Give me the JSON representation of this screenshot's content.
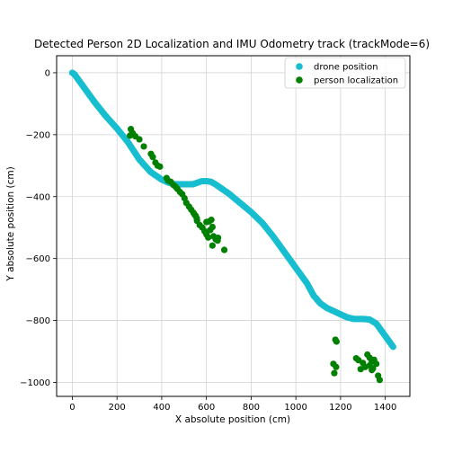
{
  "chart_data": {
    "type": "scatter",
    "title": "Detected Person 2D Localization and IMU Odometry track (trackMode=6)",
    "xlabel": "X absolute position (cm)",
    "ylabel": "Y absolute position (cm)",
    "xlim": [
      -70,
      1510
    ],
    "ylim": [
      -1045,
      55
    ],
    "xticks": [
      0,
      200,
      400,
      600,
      800,
      1000,
      1200,
      1400
    ],
    "yticks": [
      0,
      -200,
      -400,
      -600,
      -800,
      -1000
    ],
    "grid": true,
    "legend_position": "top-right",
    "series": [
      {
        "name": "drone position",
        "color": "#17becf",
        "path": [
          [
            0,
            0
          ],
          [
            10,
            -5
          ],
          [
            30,
            -25
          ],
          [
            60,
            -55
          ],
          [
            100,
            -95
          ],
          [
            150,
            -140
          ],
          [
            200,
            -180
          ],
          [
            250,
            -225
          ],
          [
            300,
            -280
          ],
          [
            350,
            -320
          ],
          [
            400,
            -345
          ],
          [
            430,
            -355
          ],
          [
            460,
            -360
          ],
          [
            500,
            -360
          ],
          [
            540,
            -360
          ],
          [
            560,
            -355
          ],
          [
            580,
            -350
          ],
          [
            600,
            -350
          ],
          [
            620,
            -352
          ],
          [
            640,
            -360
          ],
          [
            670,
            -375
          ],
          [
            700,
            -390
          ],
          [
            750,
            -420
          ],
          [
            800,
            -450
          ],
          [
            850,
            -485
          ],
          [
            900,
            -530
          ],
          [
            950,
            -580
          ],
          [
            1000,
            -630
          ],
          [
            1050,
            -680
          ],
          [
            1080,
            -720
          ],
          [
            1110,
            -745
          ],
          [
            1140,
            -760
          ],
          [
            1170,
            -770
          ],
          [
            1200,
            -780
          ],
          [
            1230,
            -790
          ],
          [
            1260,
            -795
          ],
          [
            1300,
            -795
          ],
          [
            1330,
            -797
          ],
          [
            1360,
            -810
          ],
          [
            1380,
            -830
          ],
          [
            1400,
            -850
          ],
          [
            1420,
            -870
          ],
          [
            1435,
            -885
          ]
        ]
      },
      {
        "name": "person localization",
        "color": "#008000",
        "points": [
          [
            262,
            -182
          ],
          [
            270,
            -195
          ],
          [
            282,
            -205
          ],
          [
            258,
            -203
          ],
          [
            300,
            -215
          ],
          [
            320,
            -238
          ],
          [
            352,
            -262
          ],
          [
            360,
            -272
          ],
          [
            372,
            -290
          ],
          [
            382,
            -300
          ],
          [
            392,
            -303
          ],
          [
            422,
            -340
          ],
          [
            428,
            -348
          ],
          [
            440,
            -352
          ],
          [
            452,
            -362
          ],
          [
            462,
            -368
          ],
          [
            470,
            -375
          ],
          [
            482,
            -385
          ],
          [
            492,
            -392
          ],
          [
            502,
            -405
          ],
          [
            510,
            -420
          ],
          [
            522,
            -432
          ],
          [
            532,
            -442
          ],
          [
            542,
            -452
          ],
          [
            552,
            -462
          ],
          [
            558,
            -478
          ],
          [
            570,
            -492
          ],
          [
            582,
            -500
          ],
          [
            592,
            -512
          ],
          [
            600,
            -522
          ],
          [
            608,
            -532
          ],
          [
            612,
            -480
          ],
          [
            622,
            -475
          ],
          [
            627,
            -498
          ],
          [
            617,
            -508
          ],
          [
            632,
            -528
          ],
          [
            642,
            -538
          ],
          [
            652,
            -533
          ],
          [
            627,
            -558
          ],
          [
            680,
            -572
          ],
          [
            547,
            -458
          ],
          [
            600,
            -482
          ],
          [
            557,
            -470
          ],
          [
            650,
            -542
          ],
          [
            1168,
            -940
          ],
          [
            1177,
            -862
          ],
          [
            1182,
            -868
          ],
          [
            1180,
            -950
          ],
          [
            1172,
            -970
          ],
          [
            1270,
            -922
          ],
          [
            1280,
            -928
          ],
          [
            1290,
            -957
          ],
          [
            1300,
            -937
          ],
          [
            1310,
            -950
          ],
          [
            1320,
            -910
          ],
          [
            1330,
            -920
          ],
          [
            1340,
            -932
          ],
          [
            1330,
            -945
          ],
          [
            1345,
            -955
          ],
          [
            1350,
            -927
          ],
          [
            1360,
            -940
          ],
          [
            1368,
            -978
          ],
          [
            1375,
            -992
          ],
          [
            1340,
            -960
          ]
        ]
      }
    ]
  }
}
